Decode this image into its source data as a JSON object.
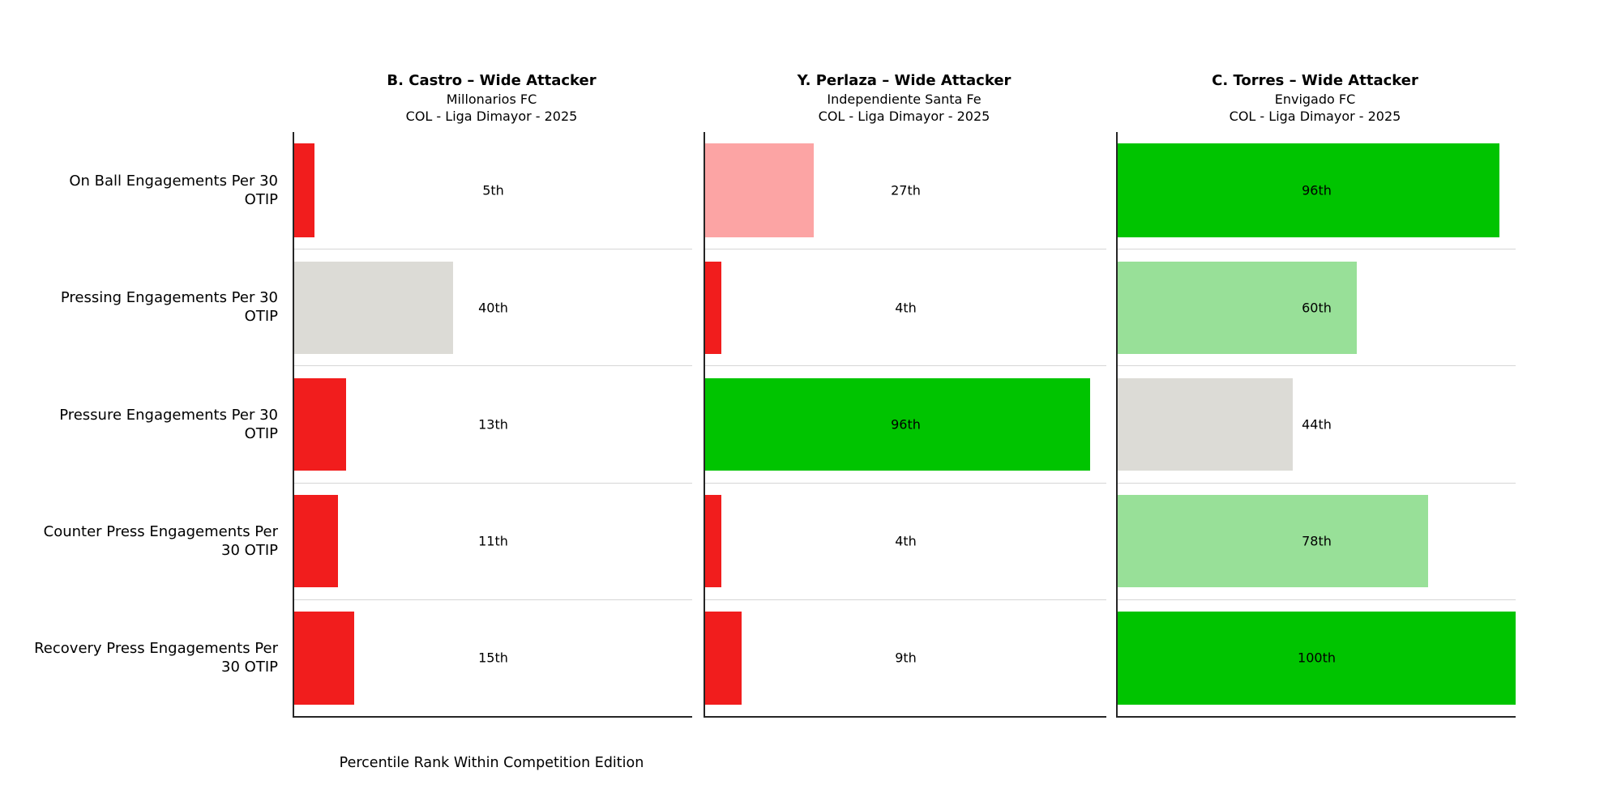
{
  "chart_data": {
    "type": "bar",
    "orientation": "horizontal",
    "title": "",
    "xlabel": "Percentile Rank Within Competition Edition",
    "ylabel": "",
    "xlim": [
      0,
      100
    ],
    "grid": "row-separators-only",
    "legend_position": "none",
    "categories": [
      "On Ball Engagements Per 30 OTIP",
      "Pressing Engagements Per 30 OTIP",
      "Pressure Engagements Per 30 OTIP",
      "Counter Press Engagements Per 30 OTIP",
      "Recovery Press Engagements Per 30 OTIP"
    ],
    "series": [
      {
        "name": "B. Castro – Wide Attacker",
        "team": "Millonarios FC",
        "competition": "COL - Liga Dimayor - 2025",
        "values": [
          5,
          40,
          13,
          11,
          15
        ],
        "value_labels": [
          "5th",
          "40th",
          "13th",
          "11th",
          "15th"
        ]
      },
      {
        "name": "Y. Perlaza – Wide Attacker",
        "team": "Independiente Santa Fe",
        "competition": "COL - Liga Dimayor - 2025",
        "values": [
          27,
          4,
          96,
          4,
          9
        ],
        "value_labels": [
          "27th",
          "4th",
          "96th",
          "4th",
          "9th"
        ]
      },
      {
        "name": "C. Torres – Wide Attacker",
        "team": "Envigado FC",
        "competition": "COL - Liga Dimayor - 2025",
        "values": [
          96,
          60,
          44,
          78,
          100
        ],
        "value_labels": [
          "96th",
          "60th",
          "44th",
          "78th",
          "100th"
        ]
      }
    ]
  },
  "colors": {
    "red": "#f11d1d",
    "pink": "#fca4a4",
    "grey": "#dcdbd6",
    "light_green": "#98e098",
    "green": "#00c400",
    "axis_spine": "#262626",
    "row_separator": "#d6d6d6"
  },
  "row_labels": [
    "On Ball Engagements Per 30\nOTIP",
    "Pressing Engagements Per 30\nOTIP",
    "Pressure Engagements Per 30\nOTIP",
    "Counter Press Engagements Per\n30 OTIP",
    "Recovery Press Engagements Per\n30 OTIP"
  ],
  "xlabel": "Percentile Rank Within Competition Edition",
  "panels": [
    {
      "title": "B. Castro – Wide Attacker",
      "subtitle": "Millonarios FC",
      "competition": "COL - Liga Dimayor - 2025",
      "rows": [
        {
          "value": 5,
          "label": "5th",
          "color": "#f11d1d"
        },
        {
          "value": 40,
          "label": "40th",
          "color": "#dcdbd6"
        },
        {
          "value": 13,
          "label": "13th",
          "color": "#f11d1d"
        },
        {
          "value": 11,
          "label": "11th",
          "color": "#f11d1d"
        },
        {
          "value": 15,
          "label": "15th",
          "color": "#f11d1d"
        }
      ]
    },
    {
      "title": "Y. Perlaza – Wide Attacker",
      "subtitle": "Independiente Santa Fe",
      "competition": "COL - Liga Dimayor - 2025",
      "rows": [
        {
          "value": 27,
          "label": "27th",
          "color": "#fca4a4"
        },
        {
          "value": 4,
          "label": "4th",
          "color": "#f11d1d"
        },
        {
          "value": 96,
          "label": "96th",
          "color": "#00c400"
        },
        {
          "value": 4,
          "label": "4th",
          "color": "#f11d1d"
        },
        {
          "value": 9,
          "label": "9th",
          "color": "#f11d1d"
        }
      ]
    },
    {
      "title": "C. Torres – Wide Attacker",
      "subtitle": "Envigado FC",
      "competition": "COL - Liga Dimayor - 2025",
      "rows": [
        {
          "value": 96,
          "label": "96th",
          "color": "#00c400"
        },
        {
          "value": 60,
          "label": "60th",
          "color": "#98e098"
        },
        {
          "value": 44,
          "label": "44th",
          "color": "#dcdbd6"
        },
        {
          "value": 78,
          "label": "78th",
          "color": "#98e098"
        },
        {
          "value": 100,
          "label": "100th",
          "color": "#00c400"
        }
      ]
    }
  ]
}
